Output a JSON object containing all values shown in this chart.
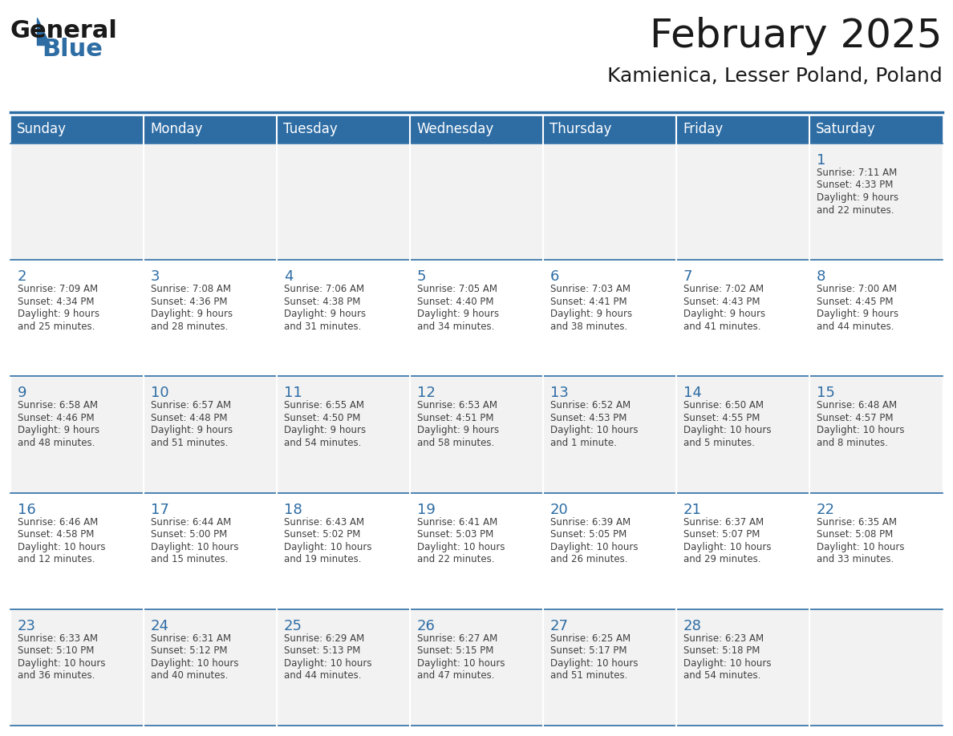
{
  "title": "February 2025",
  "subtitle": "Kamienica, Lesser Poland, Poland",
  "header_bg": "#2E6DA4",
  "header_text_color": "#FFFFFF",
  "cell_bg_odd": "#F2F2F2",
  "cell_bg_even": "#FFFFFF",
  "day_number_color": "#2E6DA4",
  "info_text_color": "#404040",
  "border_color": "#2E6DA4",
  "days_of_week": [
    "Sunday",
    "Monday",
    "Tuesday",
    "Wednesday",
    "Thursday",
    "Friday",
    "Saturday"
  ],
  "weeks": [
    [
      {
        "day": null,
        "info": ""
      },
      {
        "day": null,
        "info": ""
      },
      {
        "day": null,
        "info": ""
      },
      {
        "day": null,
        "info": ""
      },
      {
        "day": null,
        "info": ""
      },
      {
        "day": null,
        "info": ""
      },
      {
        "day": 1,
        "info": "Sunrise: 7:11 AM\nSunset: 4:33 PM\nDaylight: 9 hours\nand 22 minutes."
      }
    ],
    [
      {
        "day": 2,
        "info": "Sunrise: 7:09 AM\nSunset: 4:34 PM\nDaylight: 9 hours\nand 25 minutes."
      },
      {
        "day": 3,
        "info": "Sunrise: 7:08 AM\nSunset: 4:36 PM\nDaylight: 9 hours\nand 28 minutes."
      },
      {
        "day": 4,
        "info": "Sunrise: 7:06 AM\nSunset: 4:38 PM\nDaylight: 9 hours\nand 31 minutes."
      },
      {
        "day": 5,
        "info": "Sunrise: 7:05 AM\nSunset: 4:40 PM\nDaylight: 9 hours\nand 34 minutes."
      },
      {
        "day": 6,
        "info": "Sunrise: 7:03 AM\nSunset: 4:41 PM\nDaylight: 9 hours\nand 38 minutes."
      },
      {
        "day": 7,
        "info": "Sunrise: 7:02 AM\nSunset: 4:43 PM\nDaylight: 9 hours\nand 41 minutes."
      },
      {
        "day": 8,
        "info": "Sunrise: 7:00 AM\nSunset: 4:45 PM\nDaylight: 9 hours\nand 44 minutes."
      }
    ],
    [
      {
        "day": 9,
        "info": "Sunrise: 6:58 AM\nSunset: 4:46 PM\nDaylight: 9 hours\nand 48 minutes."
      },
      {
        "day": 10,
        "info": "Sunrise: 6:57 AM\nSunset: 4:48 PM\nDaylight: 9 hours\nand 51 minutes."
      },
      {
        "day": 11,
        "info": "Sunrise: 6:55 AM\nSunset: 4:50 PM\nDaylight: 9 hours\nand 54 minutes."
      },
      {
        "day": 12,
        "info": "Sunrise: 6:53 AM\nSunset: 4:51 PM\nDaylight: 9 hours\nand 58 minutes."
      },
      {
        "day": 13,
        "info": "Sunrise: 6:52 AM\nSunset: 4:53 PM\nDaylight: 10 hours\nand 1 minute."
      },
      {
        "day": 14,
        "info": "Sunrise: 6:50 AM\nSunset: 4:55 PM\nDaylight: 10 hours\nand 5 minutes."
      },
      {
        "day": 15,
        "info": "Sunrise: 6:48 AM\nSunset: 4:57 PM\nDaylight: 10 hours\nand 8 minutes."
      }
    ],
    [
      {
        "day": 16,
        "info": "Sunrise: 6:46 AM\nSunset: 4:58 PM\nDaylight: 10 hours\nand 12 minutes."
      },
      {
        "day": 17,
        "info": "Sunrise: 6:44 AM\nSunset: 5:00 PM\nDaylight: 10 hours\nand 15 minutes."
      },
      {
        "day": 18,
        "info": "Sunrise: 6:43 AM\nSunset: 5:02 PM\nDaylight: 10 hours\nand 19 minutes."
      },
      {
        "day": 19,
        "info": "Sunrise: 6:41 AM\nSunset: 5:03 PM\nDaylight: 10 hours\nand 22 minutes."
      },
      {
        "day": 20,
        "info": "Sunrise: 6:39 AM\nSunset: 5:05 PM\nDaylight: 10 hours\nand 26 minutes."
      },
      {
        "day": 21,
        "info": "Sunrise: 6:37 AM\nSunset: 5:07 PM\nDaylight: 10 hours\nand 29 minutes."
      },
      {
        "day": 22,
        "info": "Sunrise: 6:35 AM\nSunset: 5:08 PM\nDaylight: 10 hours\nand 33 minutes."
      }
    ],
    [
      {
        "day": 23,
        "info": "Sunrise: 6:33 AM\nSunset: 5:10 PM\nDaylight: 10 hours\nand 36 minutes."
      },
      {
        "day": 24,
        "info": "Sunrise: 6:31 AM\nSunset: 5:12 PM\nDaylight: 10 hours\nand 40 minutes."
      },
      {
        "day": 25,
        "info": "Sunrise: 6:29 AM\nSunset: 5:13 PM\nDaylight: 10 hours\nand 44 minutes."
      },
      {
        "day": 26,
        "info": "Sunrise: 6:27 AM\nSunset: 5:15 PM\nDaylight: 10 hours\nand 47 minutes."
      },
      {
        "day": 27,
        "info": "Sunrise: 6:25 AM\nSunset: 5:17 PM\nDaylight: 10 hours\nand 51 minutes."
      },
      {
        "day": 28,
        "info": "Sunrise: 6:23 AM\nSunset: 5:18 PM\nDaylight: 10 hours\nand 54 minutes."
      },
      {
        "day": null,
        "info": ""
      }
    ]
  ],
  "logo_general_color": "#1a1a1a",
  "logo_blue_color": "#2E6DA4",
  "title_fontsize": 36,
  "subtitle_fontsize": 18,
  "header_fontsize": 12,
  "day_num_fontsize": 13,
  "info_fontsize": 8.5
}
